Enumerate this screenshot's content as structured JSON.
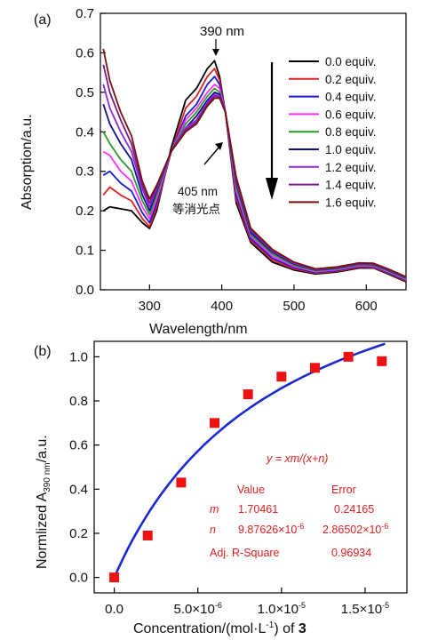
{
  "chart_data": [
    {
      "panel_label": "(a)",
      "type": "line",
      "xlabel": "Wavelength/nm",
      "ylabel": "Absorption/a.u.",
      "xlim": [
        232,
        655
      ],
      "ylim": [
        0.0,
        0.7
      ],
      "xticks": [
        "300",
        "400",
        "500",
        "600"
      ],
      "yticks": [
        "0.0",
        "0.1",
        "0.2",
        "0.3",
        "0.4",
        "0.5",
        "0.6",
        "0.7"
      ],
      "annotations": {
        "peak": "390 nm",
        "isosbestic_wl": "405 nm",
        "isosbestic_cn": "等消光点"
      },
      "legend_position": "right",
      "series": [
        {
          "name": "0.0 equiv.",
          "color": "#000000",
          "x": [
            236,
            245,
            260,
            275,
            290,
            300,
            310,
            330,
            350,
            365,
            380,
            390,
            397,
            405,
            420,
            440,
            470,
            500,
            530,
            560,
            590,
            610,
            630,
            655
          ],
          "y": [
            0.2,
            0.21,
            0.205,
            0.2,
            0.17,
            0.155,
            0.2,
            0.36,
            0.48,
            0.51,
            0.56,
            0.58,
            0.54,
            0.45,
            0.22,
            0.12,
            0.07,
            0.05,
            0.04,
            0.045,
            0.055,
            0.055,
            0.04,
            0.02
          ]
        },
        {
          "name": "0.2 equiv.",
          "color": "#e02020",
          "x": [
            236,
            245,
            260,
            275,
            290,
            300,
            310,
            330,
            350,
            365,
            380,
            390,
            397,
            405,
            420,
            440,
            470,
            500,
            530,
            560,
            590,
            610,
            630,
            655
          ],
          "y": [
            0.24,
            0.26,
            0.24,
            0.225,
            0.18,
            0.16,
            0.21,
            0.35,
            0.46,
            0.49,
            0.54,
            0.56,
            0.53,
            0.45,
            0.23,
            0.125,
            0.075,
            0.053,
            0.042,
            0.047,
            0.057,
            0.056,
            0.042,
            0.022
          ]
        },
        {
          "name": "0.4 equiv.",
          "color": "#1a1ad0",
          "x": [
            236,
            245,
            260,
            275,
            290,
            300,
            310,
            330,
            350,
            365,
            380,
            390,
            397,
            405,
            420,
            440,
            470,
            500,
            530,
            560,
            590,
            610,
            630,
            655
          ],
          "y": [
            0.29,
            0.3,
            0.27,
            0.25,
            0.195,
            0.17,
            0.22,
            0.35,
            0.44,
            0.47,
            0.52,
            0.54,
            0.52,
            0.45,
            0.24,
            0.13,
            0.08,
            0.056,
            0.044,
            0.049,
            0.059,
            0.058,
            0.044,
            0.024
          ]
        },
        {
          "name": "0.6 equiv.",
          "color": "#ff30ff",
          "x": [
            236,
            245,
            260,
            275,
            290,
            300,
            310,
            330,
            350,
            365,
            380,
            390,
            397,
            405,
            420,
            440,
            470,
            500,
            530,
            560,
            590,
            610,
            630,
            655
          ],
          "y": [
            0.35,
            0.34,
            0.3,
            0.275,
            0.21,
            0.18,
            0.23,
            0.35,
            0.43,
            0.46,
            0.5,
            0.52,
            0.51,
            0.45,
            0.25,
            0.135,
            0.085,
            0.059,
            0.046,
            0.051,
            0.061,
            0.06,
            0.046,
            0.026
          ]
        },
        {
          "name": "0.8 equiv.",
          "color": "#2a9a2a",
          "x": [
            236,
            245,
            260,
            275,
            290,
            300,
            310,
            330,
            350,
            365,
            380,
            390,
            397,
            405,
            420,
            440,
            470,
            500,
            530,
            560,
            590,
            610,
            630,
            655
          ],
          "y": [
            0.4,
            0.37,
            0.33,
            0.3,
            0.225,
            0.19,
            0.24,
            0.35,
            0.42,
            0.45,
            0.49,
            0.51,
            0.5,
            0.45,
            0.26,
            0.14,
            0.09,
            0.062,
            0.048,
            0.053,
            0.063,
            0.062,
            0.048,
            0.028
          ]
        },
        {
          "name": "1.0 equiv.",
          "color": "#101080",
          "x": [
            236,
            245,
            260,
            275,
            290,
            300,
            310,
            330,
            350,
            365,
            380,
            390,
            397,
            405,
            420,
            440,
            470,
            500,
            530,
            560,
            590,
            610,
            630,
            655
          ],
          "y": [
            0.47,
            0.42,
            0.37,
            0.33,
            0.24,
            0.2,
            0.25,
            0.35,
            0.41,
            0.44,
            0.48,
            0.5,
            0.495,
            0.45,
            0.27,
            0.145,
            0.095,
            0.065,
            0.05,
            0.055,
            0.065,
            0.064,
            0.05,
            0.03
          ]
        },
        {
          "name": "1.2 equiv.",
          "color": "#8a2be2",
          "x": [
            236,
            245,
            260,
            275,
            290,
            300,
            310,
            330,
            350,
            365,
            380,
            390,
            397,
            405,
            420,
            440,
            470,
            500,
            530,
            560,
            590,
            610,
            630,
            655
          ],
          "y": [
            0.52,
            0.46,
            0.4,
            0.35,
            0.255,
            0.21,
            0.255,
            0.35,
            0.41,
            0.43,
            0.475,
            0.495,
            0.49,
            0.45,
            0.275,
            0.15,
            0.098,
            0.067,
            0.051,
            0.056,
            0.066,
            0.065,
            0.051,
            0.031
          ]
        },
        {
          "name": "1.4 equiv.",
          "color": "#7a1a8a",
          "x": [
            236,
            245,
            260,
            275,
            290,
            300,
            310,
            330,
            350,
            365,
            380,
            390,
            397,
            405,
            420,
            440,
            470,
            500,
            530,
            560,
            590,
            610,
            630,
            655
          ],
          "y": [
            0.57,
            0.5,
            0.43,
            0.37,
            0.265,
            0.22,
            0.26,
            0.35,
            0.405,
            0.425,
            0.47,
            0.49,
            0.487,
            0.45,
            0.28,
            0.153,
            0.1,
            0.069,
            0.052,
            0.057,
            0.067,
            0.066,
            0.052,
            0.032
          ]
        },
        {
          "name": "1.6 equiv.",
          "color": "#7a1010",
          "x": [
            236,
            245,
            260,
            275,
            290,
            300,
            310,
            330,
            350,
            365,
            380,
            390,
            397,
            405,
            420,
            440,
            470,
            500,
            530,
            560,
            590,
            610,
            630,
            655
          ],
          "y": [
            0.61,
            0.53,
            0.45,
            0.39,
            0.275,
            0.23,
            0.265,
            0.35,
            0.4,
            0.42,
            0.465,
            0.485,
            0.485,
            0.45,
            0.285,
            0.156,
            0.102,
            0.07,
            0.053,
            0.058,
            0.068,
            0.067,
            0.053,
            0.033
          ]
        }
      ]
    },
    {
      "panel_label": "(b)",
      "type": "scatter",
      "xlabel_pre": "Concentration/(mol·L",
      "xlabel_sup": "-1",
      "xlabel_post": ") of ",
      "xlabel_bold": "3",
      "ylabel_pre": "Normlized A",
      "ylabel_sub": "390 nm",
      "ylabel_post": "/a.u.",
      "xlim": [
        -1.2e-06,
        1.75e-05
      ],
      "ylim": [
        -0.07,
        1.07
      ],
      "xticks": [
        {
          "value": 0,
          "base": "0.0",
          "exp": ""
        },
        {
          "value": 5e-06,
          "base": "5.0×10",
          "exp": "-6"
        },
        {
          "value": 1e-05,
          "base": "1.0×10",
          "exp": "-5"
        },
        {
          "value": 1.5e-05,
          "base": "1.5×10",
          "exp": "-5"
        }
      ],
      "yticks": [
        "0.0",
        "0.2",
        "0.4",
        "0.6",
        "0.8",
        "1.0"
      ],
      "marker_color": "#ee1111",
      "fit_color": "#1a2ad0",
      "x": [
        0,
        2e-06,
        4e-06,
        6e-06,
        8e-06,
        1e-05,
        1.2e-05,
        1.4e-05,
        1.6e-05
      ],
      "y": [
        0.0,
        0.19,
        0.43,
        0.7,
        0.83,
        0.91,
        0.95,
        1.0,
        0.98
      ],
      "fit": {
        "equation": "y = xm/(x+n)",
        "m": 1.70461,
        "n": 9.87626e-06,
        "table": {
          "col_value": "Value",
          "col_error": "Error",
          "rows": [
            {
              "param": "m",
              "value": "1.70461",
              "error": "0.24165"
            },
            {
              "param": "n",
              "value_base": "9.87626×10",
              "value_exp": "-6",
              "error_base": "2.86502×10",
              "error_exp": "-6"
            },
            {
              "param": "Adj. R-Square",
              "value": "0.96934"
            }
          ]
        }
      }
    }
  ]
}
